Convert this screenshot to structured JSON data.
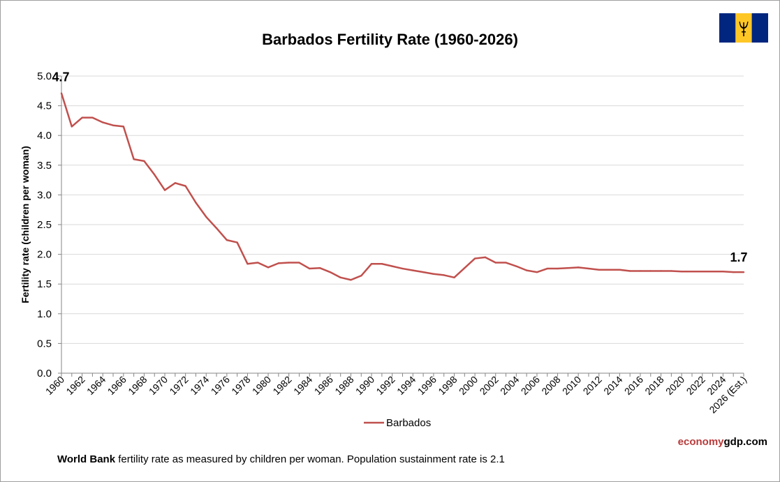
{
  "page": {
    "title": "Barbados Fertility Rate (1960-2026)",
    "footer_bold": "World Bank",
    "footer_text": "fertility rate as measured by children per woman.   Population sustainment rate is 2.1",
    "brand_part1": "economy",
    "brand_part2": "gdp.com",
    "flag_icon": "barbados-flag-icon",
    "colors": {
      "line": "#c0504d",
      "flag_blue": "#00267f",
      "flag_gold": "#ffc726",
      "trident": "#000000",
      "grid": "#d9d9d9"
    }
  },
  "chart_data": {
    "type": "line",
    "title": "Barbados Fertility Rate (1960-2026)",
    "xlabel": "",
    "ylabel": "Fertility rate (children per woman)",
    "ylim": [
      0,
      5
    ],
    "yticks": [
      "0.0",
      "0.5",
      "1.0",
      "1.5",
      "2.0",
      "2.5",
      "3.0",
      "3.5",
      "4.0",
      "4.5",
      "5.0"
    ],
    "grid": true,
    "legend_position": "bottom",
    "categories": [
      "1960",
      "1961",
      "1962",
      "1963",
      "1964",
      "1965",
      "1966",
      "1967",
      "1968",
      "1969",
      "1970",
      "1971",
      "1972",
      "1973",
      "1974",
      "1975",
      "1976",
      "1977",
      "1978",
      "1979",
      "1980",
      "1981",
      "1982",
      "1983",
      "1984",
      "1985",
      "1986",
      "1987",
      "1988",
      "1989",
      "1990",
      "1991",
      "1992",
      "1993",
      "1994",
      "1995",
      "1996",
      "1997",
      "1998",
      "1999",
      "2000",
      "2001",
      "2002",
      "2003",
      "2004",
      "2005",
      "2006",
      "2007",
      "2008",
      "2009",
      "2010",
      "2011",
      "2012",
      "2013",
      "2014",
      "2015",
      "2016",
      "2017",
      "2018",
      "2019",
      "2020",
      "2021",
      "2022",
      "2023",
      "2024",
      "2025",
      "2026 (Est.)"
    ],
    "tick_labels": [
      "1960",
      "1962",
      "1964",
      "1966",
      "1968",
      "1970",
      "1972",
      "1974",
      "1976",
      "1978",
      "1980",
      "1982",
      "1984",
      "1986",
      "1988",
      "1990",
      "1992",
      "1994",
      "1996",
      "1998",
      "2000",
      "2002",
      "2004",
      "2006",
      "2008",
      "2010",
      "2012",
      "2014",
      "2016",
      "2018",
      "2020",
      "2022",
      "2024",
      "2026 (Est.)"
    ],
    "series": [
      {
        "name": "Barbados",
        "values": [
          4.71,
          4.15,
          4.3,
          4.3,
          4.22,
          4.17,
          4.15,
          3.6,
          3.57,
          3.34,
          3.08,
          3.2,
          3.15,
          2.87,
          2.63,
          2.44,
          2.24,
          2.2,
          1.84,
          1.86,
          1.78,
          1.85,
          1.86,
          1.86,
          1.76,
          1.77,
          1.7,
          1.61,
          1.57,
          1.64,
          1.84,
          1.84,
          1.8,
          1.76,
          1.73,
          1.7,
          1.67,
          1.65,
          1.61,
          1.77,
          1.93,
          1.95,
          1.86,
          1.86,
          1.8,
          1.73,
          1.7,
          1.76,
          1.76,
          1.77,
          1.78,
          1.76,
          1.74,
          1.74,
          1.74,
          1.72,
          1.72,
          1.72,
          1.72,
          1.72,
          1.71,
          1.71,
          1.71,
          1.71,
          1.71,
          1.7,
          1.7
        ]
      }
    ],
    "annotations": [
      {
        "text": "4.7",
        "at": "1960"
      },
      {
        "text": "1.7",
        "at": "2026 (Est.)"
      }
    ]
  }
}
